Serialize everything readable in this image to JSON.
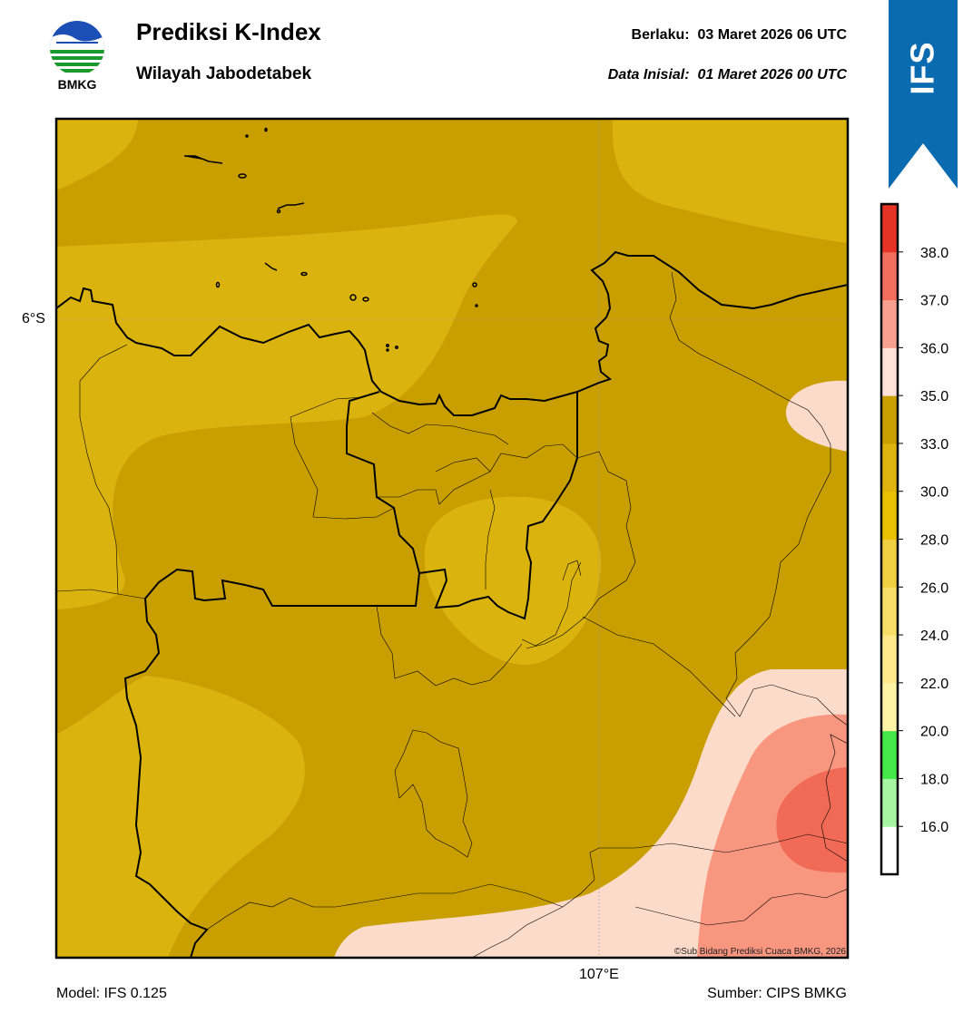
{
  "header": {
    "title": "Prediksi K-Index",
    "subtitle": "Wilayah Jabodetabek",
    "valid_label": "Berlaku:",
    "valid_value": "03 Maret 2026 06 UTC",
    "init_label": "Data Inisial:",
    "init_value": "01 Maret 2026 00 UTC",
    "logo_text": "BMKG",
    "badge_text": "IFS"
  },
  "map": {
    "lat_label": "6°S",
    "lon_label": "107°E",
    "credit": "©Sub Bidang Prediksi Cuaca BMKG, 2026"
  },
  "footer": {
    "model": "Model: IFS 0.125",
    "source": "Sumber: CIPS BMKG"
  },
  "legend": {
    "ticks": [
      "16.0",
      "18.0",
      "20.0",
      "22.0",
      "24.0",
      "26.0",
      "28.0",
      "30.0",
      "33.0",
      "35.0",
      "36.0",
      "37.0",
      "38.0"
    ],
    "colors": [
      "#ffffff",
      "#a6f5a0",
      "#44e848",
      "#fff3a6",
      "#ffe98a",
      "#f7de66",
      "#f0d040",
      "#e8c100",
      "#deb40e",
      "#c9a000",
      "#ffe2d8",
      "#f8a090",
      "#f26d5c",
      "#e53426"
    ]
  },
  "palette": {
    "k_30_33": "#dbb30f",
    "k_33_35": "#c99f00",
    "k_35_36": "#fddbca",
    "k_36_37": "#f9967f",
    "k_37_38": "#f06a55",
    "banner": "#0a6bb0"
  }
}
